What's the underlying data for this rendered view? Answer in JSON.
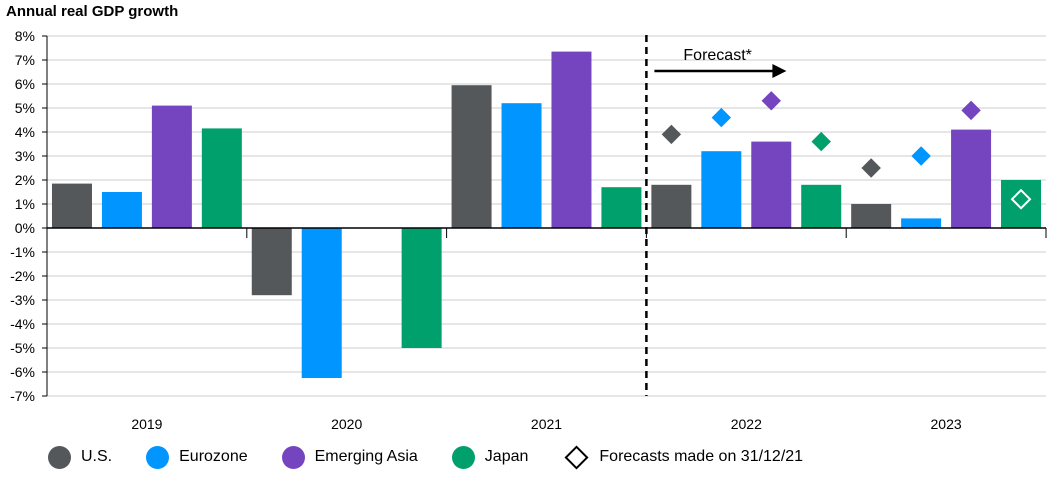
{
  "chart_data": {
    "type": "bar",
    "title": "Annual real GDP growth",
    "categories": [
      "2019",
      "2020",
      "2021",
      "2022",
      "2023"
    ],
    "ylim": [
      -7,
      8
    ],
    "ytick_labels": [
      "8%",
      "7%",
      "6%",
      "5%",
      "4%",
      "3%",
      "2%",
      "1%",
      "0%",
      "-1%",
      "-2%",
      "-3%",
      "-4%",
      "-5%",
      "-6%",
      "-7%"
    ],
    "grid": true,
    "legend_position": "bottom",
    "series": [
      {
        "name": "U.S.",
        "color": "#55585b",
        "values": [
          1.85,
          -2.8,
          5.95,
          1.8,
          1.0
        ],
        "forecast_made": [
          null,
          null,
          null,
          3.9,
          2.5
        ]
      },
      {
        "name": "Eurozone",
        "color": "#0095ff",
        "values": [
          1.5,
          -6.25,
          5.2,
          3.2,
          0.4
        ],
        "forecast_made": [
          null,
          null,
          null,
          4.6,
          3.0
        ]
      },
      {
        "name": "Emerging Asia",
        "color": "#7545c0",
        "values": [
          5.1,
          null,
          7.35,
          3.6,
          4.1
        ],
        "forecast_made": [
          null,
          null,
          null,
          5.3,
          4.9
        ]
      },
      {
        "name": "Japan",
        "color": "#00a06c",
        "values": [
          4.15,
          -5.0,
          1.7,
          1.8,
          2.0
        ],
        "forecast_made": [
          null,
          null,
          null,
          3.6,
          1.2
        ]
      }
    ],
    "forecast": {
      "label": "Forecast*",
      "starts_at_category": "2022"
    },
    "forecast_marker_legend": "Forecasts made on 31/12/21"
  }
}
